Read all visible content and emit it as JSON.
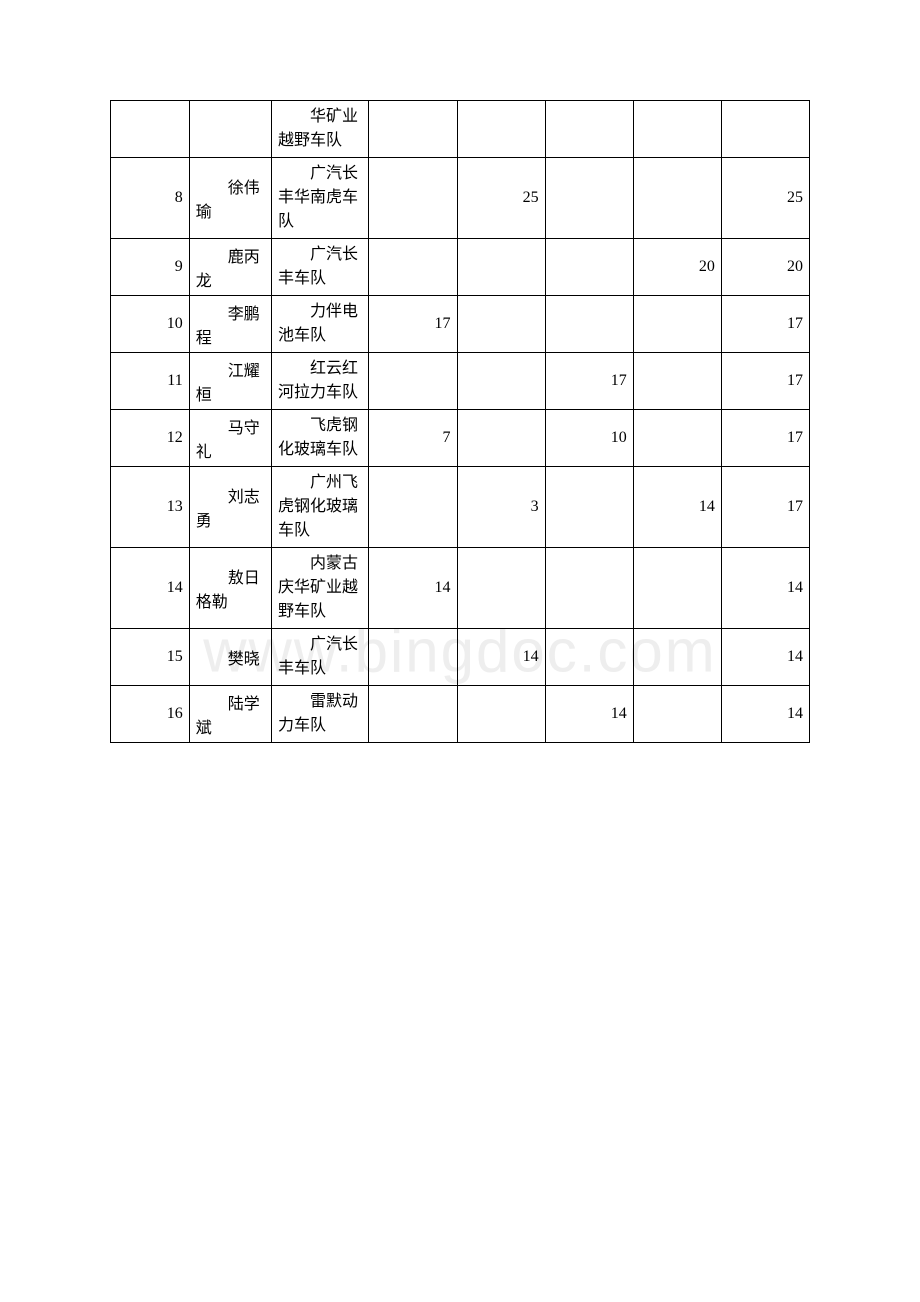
{
  "watermark": "www.bingdoc.com",
  "table": {
    "border_color": "#000000",
    "background_color": "#ffffff",
    "text_color": "#000000",
    "font_size": 16,
    "rows": [
      {
        "rank": "",
        "name": "",
        "team": "华矿业越野车队",
        "s1": "",
        "s2": "",
        "s3": "",
        "s4": "",
        "total": ""
      },
      {
        "rank": "8",
        "name": "徐伟瑜",
        "team": "广汽长丰华南虎车队",
        "s1": "",
        "s2": "25",
        "s3": "",
        "s4": "",
        "total": "25"
      },
      {
        "rank": "9",
        "name": "鹿丙龙",
        "team": "广汽长丰车队",
        "s1": "",
        "s2": "",
        "s3": "",
        "s4": "20",
        "total": "20"
      },
      {
        "rank": "10",
        "name": "李鹏程",
        "team": "力伴电池车队",
        "s1": "17",
        "s2": "",
        "s3": "",
        "s4": "",
        "total": "17"
      },
      {
        "rank": "11",
        "name": "江耀桓",
        "team": "红云红河拉力车队",
        "s1": "",
        "s2": "",
        "s3": "17",
        "s4": "",
        "total": "17"
      },
      {
        "rank": "12",
        "name": "马守礼",
        "team": "飞虎钢化玻璃车队",
        "s1": "7",
        "s2": "",
        "s3": "10",
        "s4": "",
        "total": "17"
      },
      {
        "rank": "13",
        "name": "刘志勇",
        "team": "广州飞虎钢化玻璃车队",
        "s1": "",
        "s2": "3",
        "s3": "",
        "s4": "14",
        "total": "17"
      },
      {
        "rank": "14",
        "name": "敖日格勒",
        "team": "内蒙古庆华矿业越野车队",
        "s1": "14",
        "s2": "",
        "s3": "",
        "s4": "",
        "total": "14"
      },
      {
        "rank": "15",
        "name": "樊晓",
        "team": "广汽长丰车队",
        "s1": "",
        "s2": "14",
        "s3": "",
        "s4": "",
        "total": "14"
      },
      {
        "rank": "16",
        "name": "陆学斌",
        "team": "雷默动力车队",
        "s1": "",
        "s2": "",
        "s3": "14",
        "s4": "",
        "total": "14"
      }
    ]
  }
}
